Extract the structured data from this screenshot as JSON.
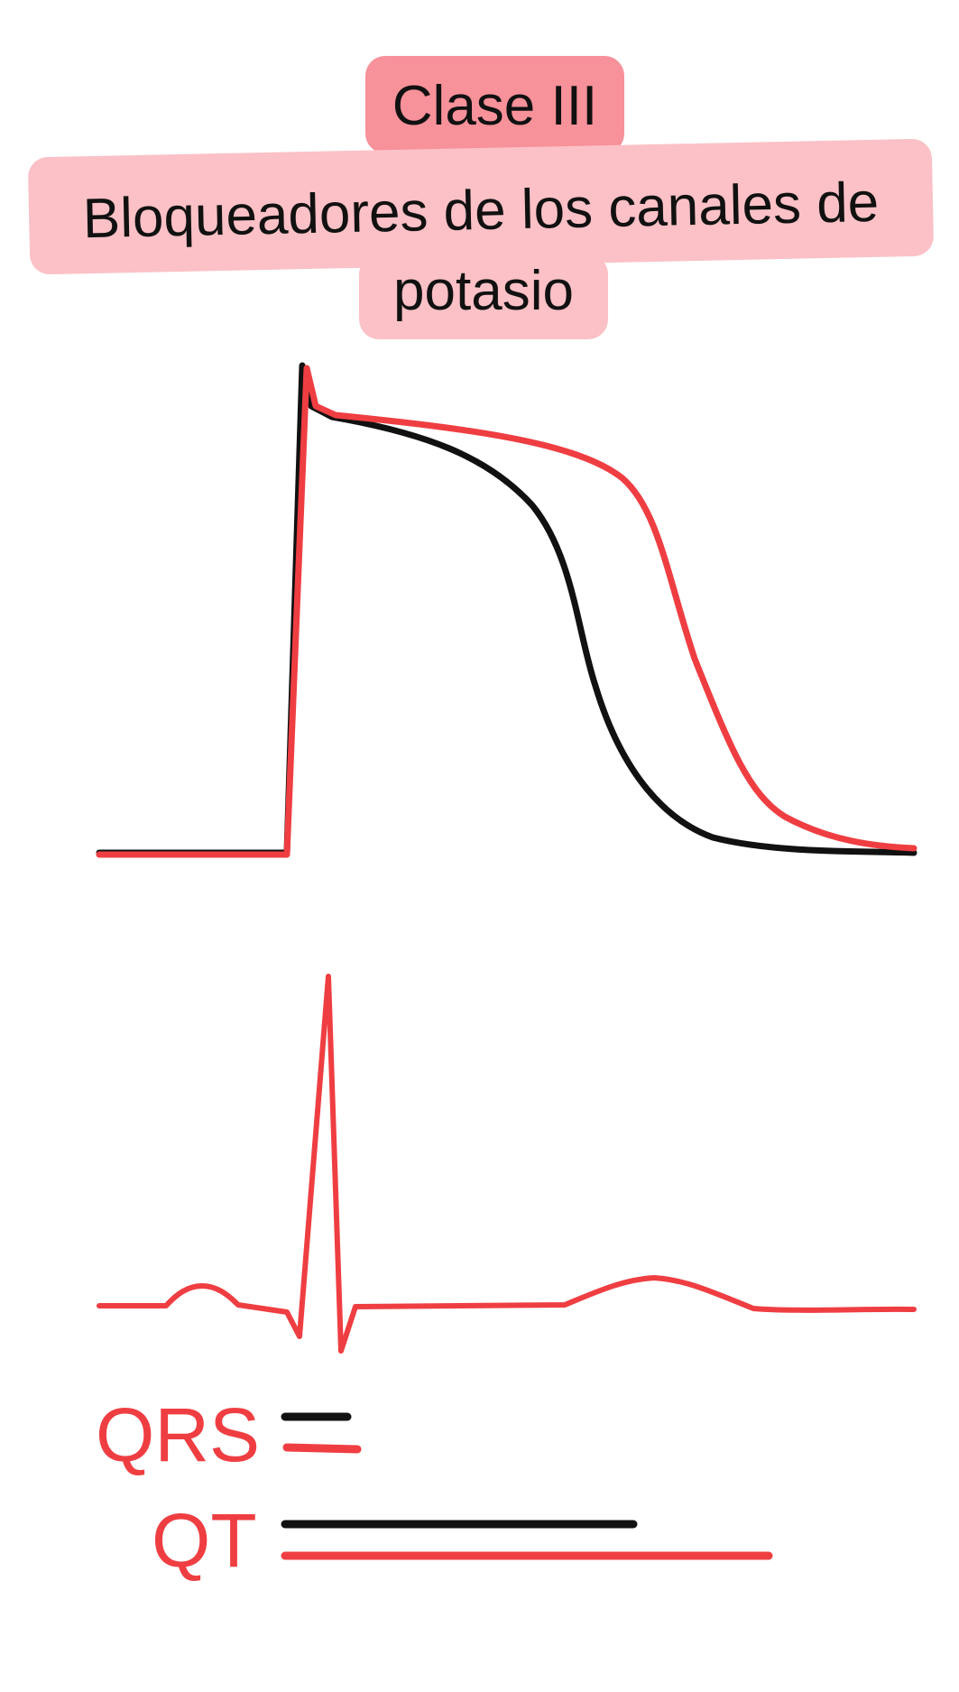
{
  "title": {
    "class_label": "Clase III",
    "subtitle_line1": "Bloqueadores de los canales de",
    "subtitle_line2": "potasio"
  },
  "colors": {
    "header_pill": "#f7919a",
    "subtitle_pill": "#fbc1c6",
    "baseline_curve": "#111111",
    "drug_curve": "#ef3e42",
    "label_text": "#ef3e42"
  },
  "legend": {
    "qrs_label": "QRS",
    "qt_label": "QT"
  },
  "interval_comparison": {
    "qrs": {
      "baseline_relative": 1.0,
      "drug_relative": 1.2
    },
    "qt": {
      "baseline_relative": 1.0,
      "drug_relative": 1.39
    }
  }
}
